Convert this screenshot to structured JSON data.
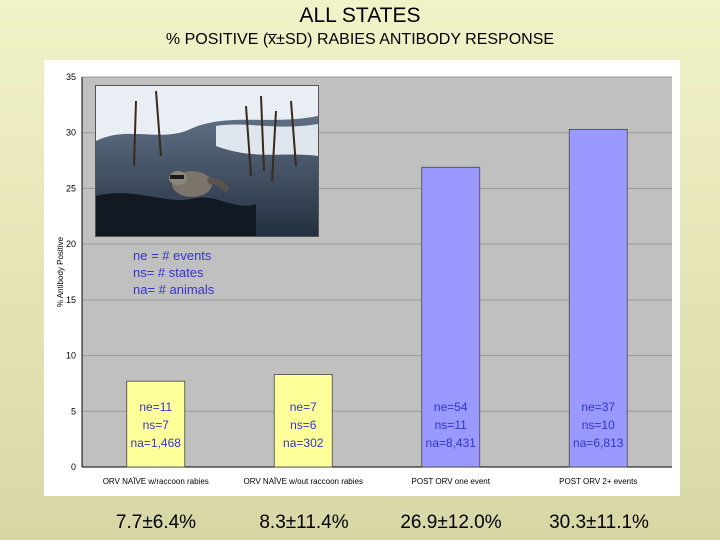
{
  "header": {
    "title": "ALL STATES",
    "subtitle": "% POSITIVE (x̅±SD) RABIES ANTIBODY RESPONSE"
  },
  "legend_lines": [
    "ne = # events",
    "ns= # states",
    "na= # animals"
  ],
  "colors": {
    "bar_naive": "#ffff99",
    "bar_post": "#9999ff",
    "plot_bg": "#c0c0c0",
    "legend_text": "#3333cc"
  },
  "chart_data": {
    "type": "bar",
    "title": "% POSITIVE (x̅±SD) RABIES ANTIBODY RESPONSE",
    "xlabel": "",
    "ylabel": "% Antibody Positive",
    "ylim": [
      0,
      35
    ],
    "yticks": [
      "0",
      "5",
      "10",
      "15",
      "20",
      "25",
      "30",
      "35"
    ],
    "grid": true,
    "categories": [
      "ORV NAÏVE w/raccoon rabies",
      "ORV NAÏVE w/out raccoon rabies",
      "POST ORV one event",
      "POST ORV 2+ events"
    ],
    "values": [
      7.7,
      8.3,
      26.9,
      30.3
    ],
    "bar_labels": [
      [
        "ne=11",
        "ns=7",
        "na=1,468"
      ],
      [
        "ne=7",
        "ns=6",
        "na=302"
      ],
      [
        "ne=54",
        "ns=11",
        "na=8,431"
      ],
      [
        "ne=37",
        "ns=10",
        "na=6,813"
      ]
    ],
    "summary": [
      "7.7±6.4%",
      "8.3±11.4%",
      "26.9±12.0%",
      "30.3±11.1%"
    ]
  }
}
